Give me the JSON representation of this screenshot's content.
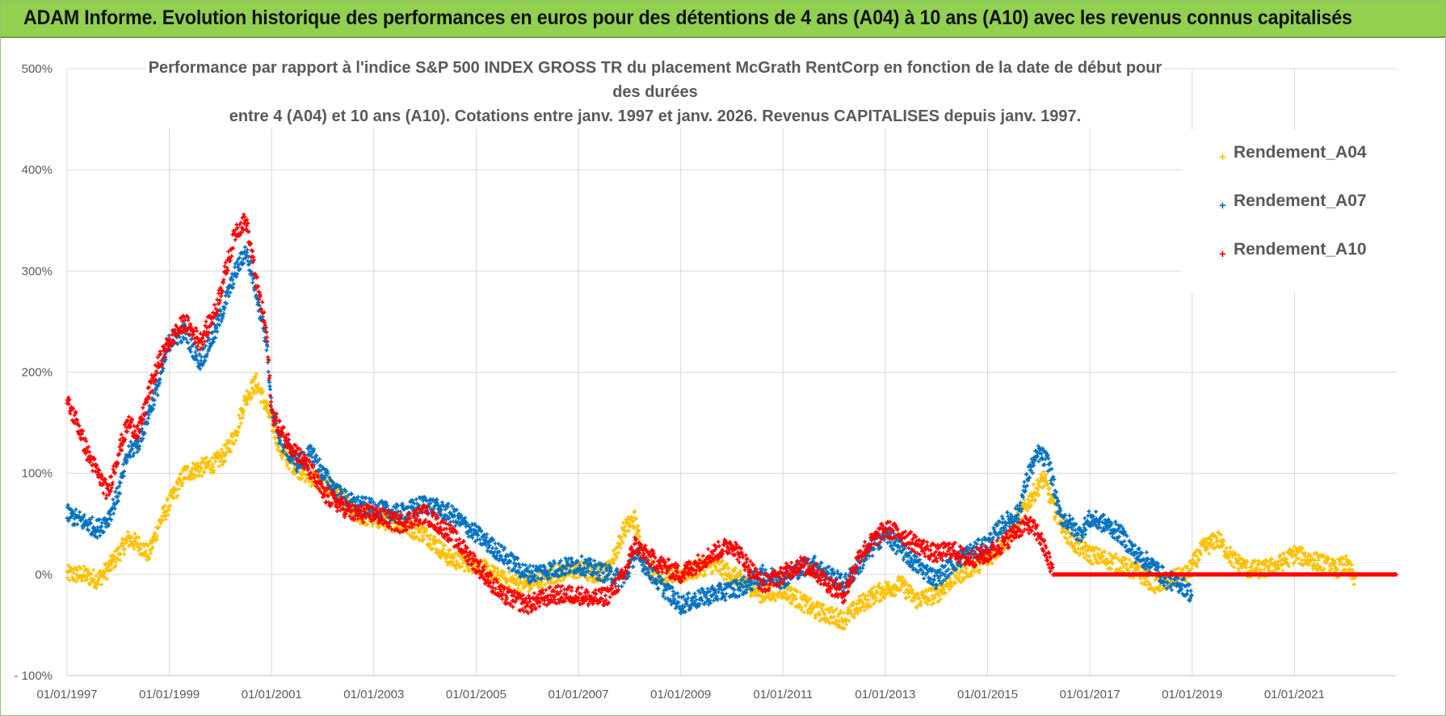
{
  "banner": {
    "title": "ADAM Informe. Evolution historique des performances en euros pour des détentions de 4 ans (A04) à 10 ans (A10) avec les revenus connus capitalisés"
  },
  "colors": {
    "banner_bg": "#92d050",
    "gridline": "#d9d9d9",
    "axis_text": "#595959",
    "A04": "#ffc000",
    "A07": "#0070c0",
    "A10": "#ff0000"
  },
  "chart_data": {
    "type": "scatter",
    "title_line1": "Performance par rapport à l'indice S&P 500 INDEX GROSS TR  du placement McGrath RentCorp en fonction de la date de début pour des durées",
    "title_line2": "entre 4 (A04) et 10 ans (A10).  Cotations entre janv. 1997 et janv. 2026. Revenus CAPITALISES depuis janv. 1997.",
    "xlim": [
      1997.0,
      2023.0
    ],
    "ylim": [
      -100,
      500
    ],
    "y_ticks": [
      -100,
      0,
      100,
      200,
      300,
      400,
      500
    ],
    "y_tick_labels": [
      "- 100%",
      "0%",
      "100%",
      "200%",
      "300%",
      "400%",
      "500%"
    ],
    "x_ticks": [
      1997,
      1999,
      2001,
      2003,
      2005,
      2007,
      2009,
      2011,
      2013,
      2015,
      2017,
      2019,
      2021
    ],
    "x_tick_labels": [
      "01/01/1997",
      "01/01/1999",
      "01/01/2001",
      "01/01/2003",
      "01/01/2005",
      "01/01/2007",
      "01/01/2009",
      "01/01/2011",
      "01/01/2013",
      "01/01/2015",
      "01/01/2017",
      "01/01/2019",
      "01/01/2021"
    ],
    "legend_position": "top-right",
    "series": [
      {
        "name": "Rendement_A04",
        "color": "#ffc000",
        "x": [
          1997.0,
          1997.3,
          1997.6,
          1997.8,
          1998.0,
          1998.2,
          1998.4,
          1998.6,
          1998.8,
          1999.0,
          1999.3,
          1999.6,
          1999.9,
          2000.1,
          2000.3,
          2000.5,
          2000.7,
          2000.9,
          2001.0,
          2001.2,
          2001.5,
          2001.8,
          2002.0,
          2002.3,
          2002.6,
          2003.0,
          2003.5,
          2004.0,
          2004.5,
          2005.0,
          2005.5,
          2006.0,
          2006.5,
          2007.0,
          2007.3,
          2007.6,
          2007.9,
          2008.1,
          2008.3,
          2008.6,
          2009.0,
          2009.3,
          2009.6,
          2010.0,
          2010.3,
          2010.6,
          2011.0,
          2011.3,
          2011.6,
          2011.9,
          2012.2,
          2012.5,
          2012.8,
          2013.0,
          2013.3,
          2013.6,
          2014.0,
          2014.3,
          2014.6,
          2015.0,
          2015.3,
          2015.6,
          2015.9,
          2016.1,
          2016.3,
          2016.5,
          2016.7,
          2017.0,
          2017.3,
          2017.6,
          2018.0,
          2018.3,
          2018.6,
          2018.9,
          2019.2,
          2019.5,
          2019.8,
          2020.1,
          2020.4,
          2020.7,
          2021.0,
          2021.3,
          2021.6,
          2021.8,
          2022.0,
          2022.2
        ],
        "y": [
          0,
          0,
          -5,
          5,
          20,
          35,
          30,
          20,
          50,
          70,
          100,
          105,
          110,
          120,
          140,
          175,
          190,
          165,
          150,
          120,
          105,
          95,
          90,
          80,
          60,
          55,
          50,
          40,
          15,
          10,
          -5,
          -10,
          0,
          5,
          0,
          5,
          45,
          55,
          10,
          0,
          0,
          5,
          10,
          0,
          -10,
          -20,
          -15,
          -25,
          -35,
          -40,
          -45,
          -30,
          -20,
          -15,
          -10,
          -25,
          -20,
          -5,
          5,
          15,
          30,
          55,
          80,
          95,
          65,
          45,
          30,
          20,
          15,
          10,
          0,
          -10,
          -5,
          0,
          25,
          35,
          15,
          5,
          5,
          10,
          20,
          15,
          10,
          5,
          10,
          -5
        ]
      },
      {
        "name": "Rendement_A07",
        "color": "#0070c0",
        "x": [
          1997.0,
          1997.2,
          1997.4,
          1997.6,
          1997.8,
          1998.0,
          1998.2,
          1998.4,
          1998.6,
          1998.8,
          1999.0,
          1999.3,
          1999.6,
          1999.9,
          2000.1,
          2000.3,
          2000.5,
          2000.7,
          2000.9,
          2001.0,
          2001.2,
          2001.5,
          2001.8,
          2002.0,
          2002.3,
          2002.6,
          2003.0,
          2003.5,
          2004.0,
          2004.5,
          2005.0,
          2005.5,
          2006.0,
          2006.5,
          2007.0,
          2007.3,
          2007.6,
          2007.9,
          2008.1,
          2008.3,
          2008.6,
          2009.0,
          2009.3,
          2009.6,
          2010.0,
          2010.3,
          2010.6,
          2011.0,
          2011.3,
          2011.6,
          2011.9,
          2012.2,
          2012.5,
          2012.8,
          2013.0,
          2013.3,
          2013.6,
          2014.0,
          2014.3,
          2014.6,
          2015.0,
          2015.3,
          2015.6,
          2015.8,
          2016.0,
          2016.2,
          2016.4,
          2016.6,
          2016.8,
          2017.0,
          2017.3,
          2017.6,
          2017.9,
          2018.2,
          2018.5,
          2018.8,
          2019.0
        ],
        "y": [
          60,
          55,
          50,
          45,
          55,
          80,
          120,
          130,
          160,
          190,
          230,
          240,
          210,
          240,
          270,
          300,
          320,
          280,
          230,
          160,
          130,
          110,
          120,
          100,
          80,
          70,
          65,
          60,
          70,
          60,
          40,
          20,
          0,
          5,
          10,
          5,
          0,
          -5,
          20,
          10,
          -10,
          -30,
          -25,
          -20,
          -15,
          -10,
          0,
          -5,
          5,
          10,
          0,
          -10,
          10,
          30,
          40,
          25,
          10,
          -5,
          10,
          20,
          30,
          50,
          60,
          100,
          120,
          110,
          60,
          50,
          40,
          55,
          50,
          40,
          20,
          10,
          -5,
          -10,
          -20
        ]
      },
      {
        "name": "Rendement_A10",
        "color": "#ff0000",
        "x": [
          1997.0,
          1997.2,
          1997.4,
          1997.6,
          1997.8,
          1998.0,
          1998.2,
          1998.4,
          1998.6,
          1998.8,
          1999.0,
          1999.3,
          1999.6,
          1999.9,
          2000.1,
          2000.3,
          2000.5,
          2000.7,
          2000.9,
          2001.0,
          2001.2,
          2001.5,
          2001.8,
          2002.0,
          2002.3,
          2002.6,
          2003.0,
          2003.5,
          2004.0,
          2004.5,
          2005.0,
          2005.5,
          2006.0,
          2006.5,
          2007.0,
          2007.3,
          2007.6,
          2007.9,
          2008.1,
          2008.3,
          2008.6,
          2009.0,
          2009.3,
          2009.6,
          2010.0,
          2010.3,
          2010.6,
          2011.0,
          2011.3,
          2011.6,
          2011.9,
          2012.2,
          2012.5,
          2012.8,
          2013.0,
          2013.3,
          2013.6,
          2014.0,
          2014.3,
          2014.6,
          2015.0,
          2015.3,
          2015.6,
          2015.8,
          2016.0,
          2016.3,
          2016.6,
          2017.0,
          2017.5,
          2018.0,
          2018.5,
          2019.0,
          2019.5,
          2020.0,
          2020.5,
          2021.0,
          2021.5,
          2022.0,
          2022.5,
          2023.0
        ],
        "y": [
          170,
          150,
          120,
          100,
          80,
          120,
          150,
          140,
          180,
          210,
          230,
          250,
          230,
          260,
          300,
          340,
          350,
          290,
          240,
          160,
          140,
          120,
          100,
          80,
          70,
          60,
          60,
          50,
          60,
          40,
          10,
          -20,
          -30,
          -20,
          -20,
          -25,
          -20,
          0,
          30,
          20,
          10,
          0,
          10,
          20,
          30,
          10,
          -10,
          0,
          10,
          5,
          -10,
          -20,
          20,
          35,
          45,
          40,
          30,
          20,
          25,
          15,
          20,
          30,
          45,
          50,
          40,
          0,
          0,
          0,
          0,
          0,
          0,
          0,
          0,
          0,
          0,
          0,
          0,
          0,
          0,
          0
        ]
      }
    ]
  }
}
